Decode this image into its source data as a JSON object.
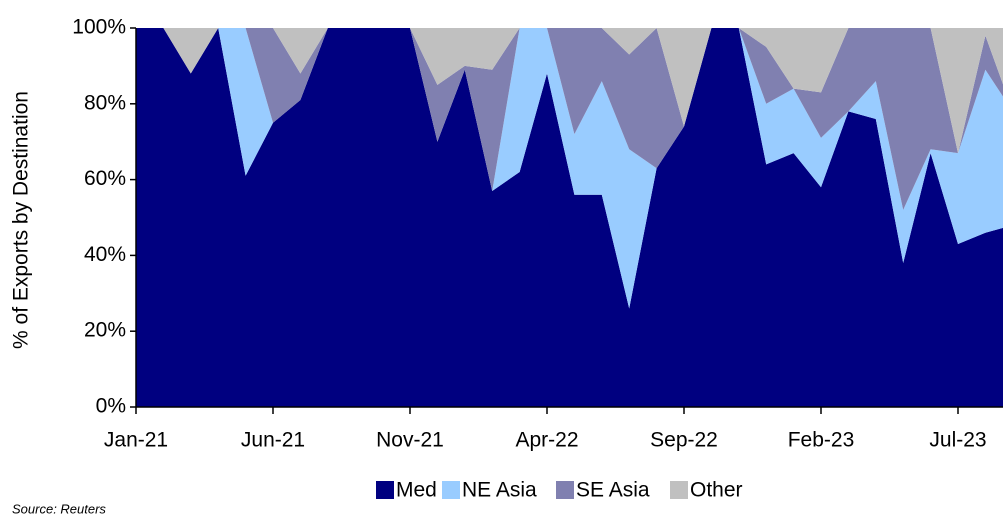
{
  "chart_data": {
    "type": "stacked_area",
    "y_axis_label": "% of Exports by Destination",
    "source": "Source: Reuters",
    "categories": [
      "Jan-21",
      null,
      null,
      null,
      null,
      "Jun-21",
      null,
      null,
      null,
      null,
      "Nov-21",
      null,
      null,
      null,
      null,
      "Apr-22",
      null,
      null,
      null,
      null,
      "Sep-22",
      null,
      null,
      null,
      null,
      "Feb-23",
      null,
      null,
      null,
      null,
      "Jul-23",
      null,
      null
    ],
    "series": [
      {
        "name": "Med",
        "color": "#000080",
        "values": [
          100,
          100,
          88,
          100,
          61,
          75,
          81,
          100,
          100,
          100,
          100,
          70,
          89,
          57,
          62,
          88,
          56,
          56,
          26,
          63,
          74,
          100,
          100,
          64,
          67,
          58,
          78,
          76,
          38,
          67,
          43,
          46,
          48
        ]
      },
      {
        "name": "NE Asia",
        "color": "#99ccff",
        "values": [
          0,
          0,
          0,
          0,
          39,
          0,
          0,
          0,
          0,
          0,
          0,
          0,
          0,
          0,
          38,
          12,
          16,
          30,
          42,
          0,
          0,
          0,
          0,
          16,
          17,
          13,
          0,
          10,
          14,
          1,
          24,
          43,
          30
        ]
      },
      {
        "name": "SE Asia",
        "color": "#8080b0",
        "values": [
          0,
          0,
          0,
          0,
          0,
          25,
          7,
          0,
          0,
          0,
          0,
          15,
          1,
          32,
          0,
          0,
          28,
          14,
          25,
          37,
          0,
          0,
          0,
          15,
          0,
          12,
          22,
          14,
          48,
          32,
          0,
          9,
          0
        ]
      },
      {
        "name": "Other",
        "color": "#c0c0c0",
        "values": [
          0,
          0,
          12,
          0,
          0,
          0,
          12,
          0,
          0,
          0,
          0,
          15,
          10,
          11,
          0,
          0,
          0,
          0,
          7,
          0,
          26,
          0,
          0,
          5,
          16,
          17,
          0,
          0,
          0,
          0,
          33,
          2,
          22
        ]
      }
    ],
    "ylim": [
      0,
      100
    ],
    "yticks": [
      {
        "value": 0,
        "label": "0%"
      },
      {
        "value": 20,
        "label": "20%"
      },
      {
        "value": 40,
        "label": "40%"
      },
      {
        "value": 60,
        "label": "60%"
      },
      {
        "value": 80,
        "label": "80%"
      },
      {
        "value": 100,
        "label": "100%"
      }
    ],
    "legend": "bottom"
  }
}
